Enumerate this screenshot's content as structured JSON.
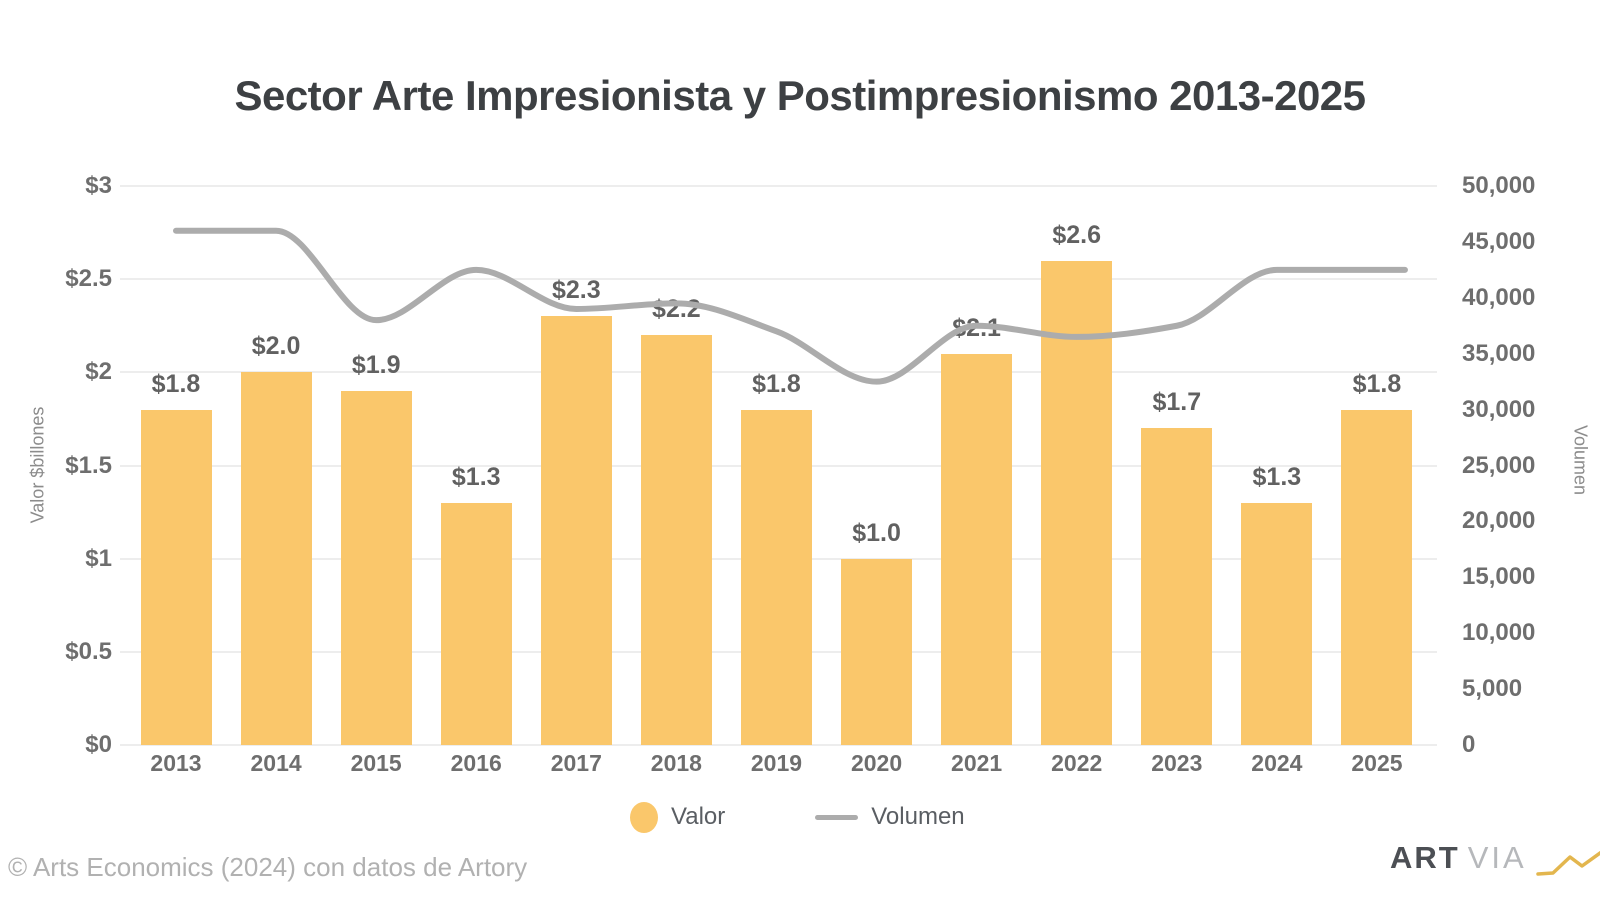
{
  "chart_data": {
    "type": "combo_bar_line",
    "title": "Sector Arte Impresionista y Postimpresionismo 2013-2025",
    "categories": [
      "2013",
      "2014",
      "2015",
      "2016",
      "2017",
      "2018",
      "2019",
      "2020",
      "2021",
      "2022",
      "2023",
      "2024",
      "2025"
    ],
    "series": [
      {
        "name": "Valor",
        "type": "bar",
        "axis": "left",
        "color": "#FAC76B",
        "values": [
          1.8,
          2.0,
          1.9,
          1.3,
          2.3,
          2.2,
          1.8,
          1.0,
          2.1,
          2.6,
          1.7,
          1.3,
          1.8
        ],
        "labels": [
          "$1.8",
          "$2.0",
          "$1.9",
          "$1.3",
          "$2.3",
          "$2.2",
          "$1.8",
          "$1.0",
          "$2.1",
          "$2.6",
          "$1.7",
          "$1.3",
          "$1.8"
        ]
      },
      {
        "name": "Volumen",
        "type": "line",
        "axis": "right",
        "color": "#ACACAC",
        "values": [
          46000,
          46000,
          38000,
          42500,
          39000,
          39500,
          37000,
          32500,
          37500,
          36500,
          37500,
          42500,
          42500
        ]
      }
    ],
    "left_axis": {
      "title": "Valor $billones",
      "min": 0,
      "max": 3,
      "tick_values": [
        0,
        0.5,
        1,
        1.5,
        2,
        2.5,
        3
      ],
      "tick_labels": [
        "$0",
        "$0.5",
        "$1",
        "$1.5",
        "$2",
        "$2.5",
        "$3"
      ]
    },
    "right_axis": {
      "title": "Volumen",
      "min": 0,
      "max": 50000,
      "tick_values": [
        0,
        5000,
        10000,
        15000,
        20000,
        25000,
        30000,
        35000,
        40000,
        45000,
        50000
      ],
      "tick_labels": [
        "0",
        "5,000",
        "10,000",
        "15,000",
        "20,000",
        "25,000",
        "30,000",
        "35,000",
        "40,000",
        "45,000",
        "50,000"
      ]
    },
    "grid": "horizontal",
    "legend_position": "bottom"
  },
  "footer": {
    "copyright": "© Arts Economics (2024) con datos de Artory"
  },
  "logo": {
    "art": "ART",
    "via": "VIA"
  },
  "colors": {
    "bar": "#FAC76B",
    "line": "#ACACAC",
    "gridline": "#EDEDED",
    "title_text": "#3D4043",
    "tick_text": "#6E6E6E",
    "logo_zigzag": "#E3B64E"
  }
}
